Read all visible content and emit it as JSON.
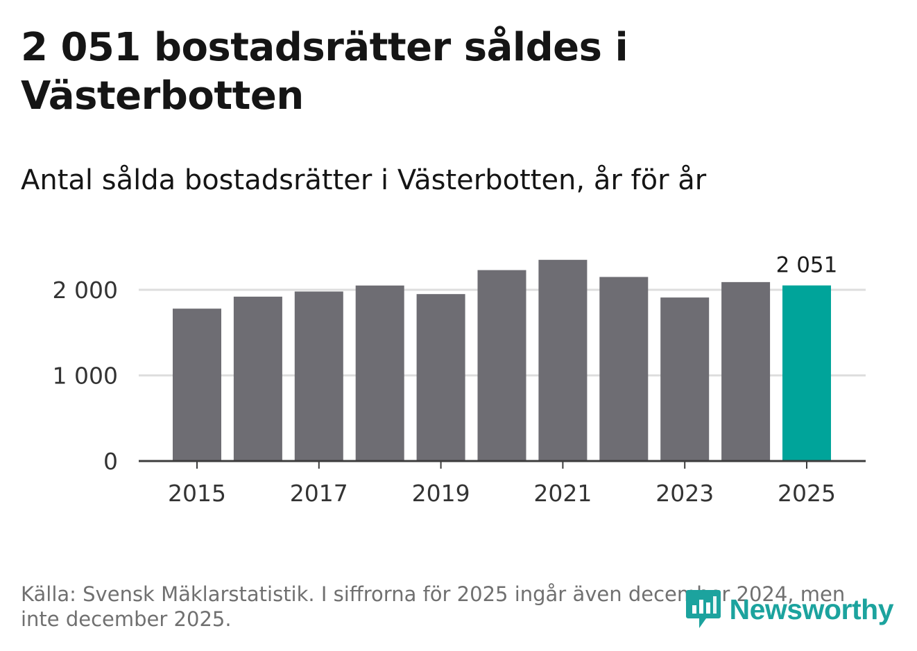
{
  "title": "2 051 bostadsrätter såldes i Västerbotten",
  "subtitle": "Antal sålda bostadsrätter i Västerbotten, år för år",
  "source": "Källa: Svensk Mäklarstatistik. I siffrorna för 2025 ingår även december 2024, men inte december 2025.",
  "logo": {
    "name": "Newsworthy",
    "icon": "newsworthy-logo-icon"
  },
  "colors": {
    "bar": "#6e6d73",
    "highlight": "#00a49a",
    "gridline": "#dedede",
    "axis": "#3c3c3c",
    "tick_label": "#333333",
    "brand": "#1ca39e"
  },
  "chart_data": {
    "type": "bar",
    "title": "Antal sålda bostadsrätter i Västerbotten, år för år",
    "xlabel": "",
    "ylabel": "",
    "categories": [
      "2015",
      "2016",
      "2017",
      "2018",
      "2019",
      "2020",
      "2021",
      "2022",
      "2023",
      "2024",
      "2025"
    ],
    "values": [
      1780,
      1920,
      1980,
      2050,
      1950,
      2230,
      2350,
      2150,
      1910,
      2090,
      2051
    ],
    "ylim": [
      0,
      2400
    ],
    "yticks": [
      0,
      1000,
      2000
    ],
    "ytick_labels": [
      "0",
      "1 000",
      "2 000"
    ],
    "xtick_labels": [
      "2015",
      "2017",
      "2019",
      "2021",
      "2023",
      "2025"
    ],
    "highlight_category": "2025",
    "highlight_label": "2 051",
    "grid": true
  }
}
